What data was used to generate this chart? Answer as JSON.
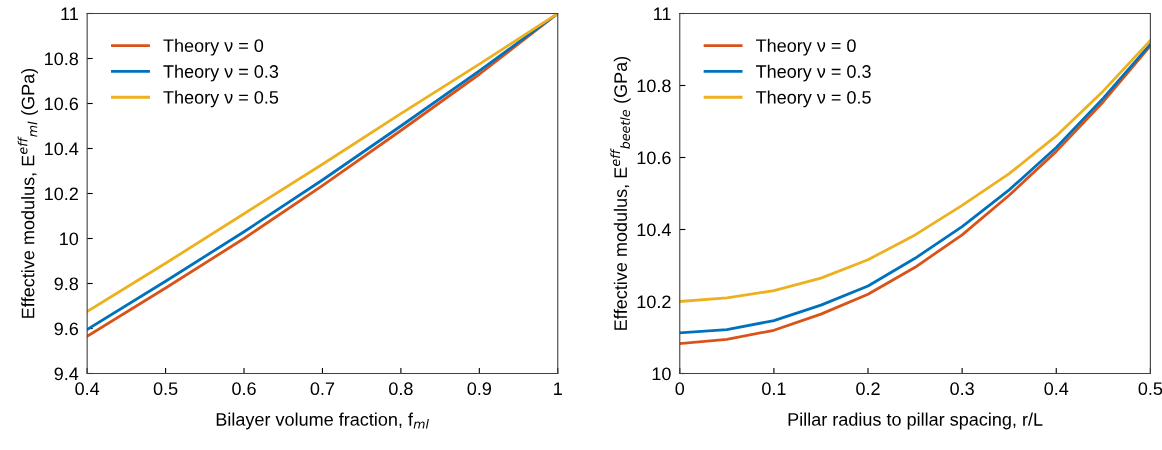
{
  "chart_data": [
    {
      "type": "line",
      "xlabel": "Bilayer volume fraction, f$_{ml}$",
      "ylabel": "Effective modulus, E$^{eff}$$_{ml}$ (GPa)",
      "x": [
        0.4,
        0.5,
        0.6,
        0.7,
        0.8,
        0.9,
        1.0
      ],
      "series": [
        {
          "name": "Theory ν = 0",
          "color": "#d95319",
          "values": [
            9.565,
            9.78,
            10.0,
            10.235,
            10.48,
            10.73,
            11.0
          ]
        },
        {
          "name": "Theory ν = 0.3",
          "color": "#0072bd",
          "values": [
            9.595,
            9.81,
            10.03,
            10.26,
            10.5,
            10.745,
            11.0
          ]
        },
        {
          "name": "Theory ν = 0.5",
          "color": "#edb120",
          "values": [
            9.675,
            9.89,
            10.11,
            10.33,
            10.555,
            10.775,
            11.0
          ]
        }
      ],
      "xlim": [
        0.4,
        1
      ],
      "xticks": [
        0.4,
        0.5,
        0.6,
        0.7,
        0.8,
        0.9,
        1
      ],
      "ylim": [
        9.4,
        11
      ],
      "yticks": [
        9.4,
        9.6,
        9.8,
        10,
        10.2,
        10.4,
        10.6,
        10.8,
        11
      ],
      "grid": false,
      "legend": "top left",
      "line_style": "solid"
    },
    {
      "type": "line",
      "xlabel": "Pillar radius to pillar spacing, r/L",
      "ylabel": "Effective modulus, E$^{eff}$$_{beetle}$ (GPa)",
      "x": [
        0,
        0.05,
        0.1,
        0.15,
        0.2,
        0.25,
        0.3,
        0.35,
        0.4,
        0.45,
        0.5
      ],
      "series": [
        {
          "name": "Theory ν = 0",
          "color": "#d95319",
          "values": [
            10.083,
            10.095,
            10.12,
            10.165,
            10.22,
            10.295,
            10.385,
            10.495,
            10.617,
            10.755,
            10.91
          ]
        },
        {
          "name": "Theory ν = 0.3",
          "color": "#0072bd",
          "values": [
            10.113,
            10.122,
            10.147,
            10.19,
            10.243,
            10.32,
            10.408,
            10.51,
            10.628,
            10.765,
            10.915
          ]
        },
        {
          "name": "Theory ν = 0.5",
          "color": "#edb120",
          "values": [
            10.2,
            10.21,
            10.23,
            10.265,
            10.316,
            10.385,
            10.467,
            10.555,
            10.66,
            10.785,
            10.925
          ]
        }
      ],
      "xlim": [
        0,
        0.5
      ],
      "xticks": [
        0,
        0.1,
        0.2,
        0.3,
        0.4,
        0.5
      ],
      "ylim": [
        10,
        11
      ],
      "yticks": [
        10,
        10.2,
        10.4,
        10.6,
        10.8,
        11
      ],
      "grid": false,
      "legend": "top left",
      "line_style": "solid"
    }
  ]
}
